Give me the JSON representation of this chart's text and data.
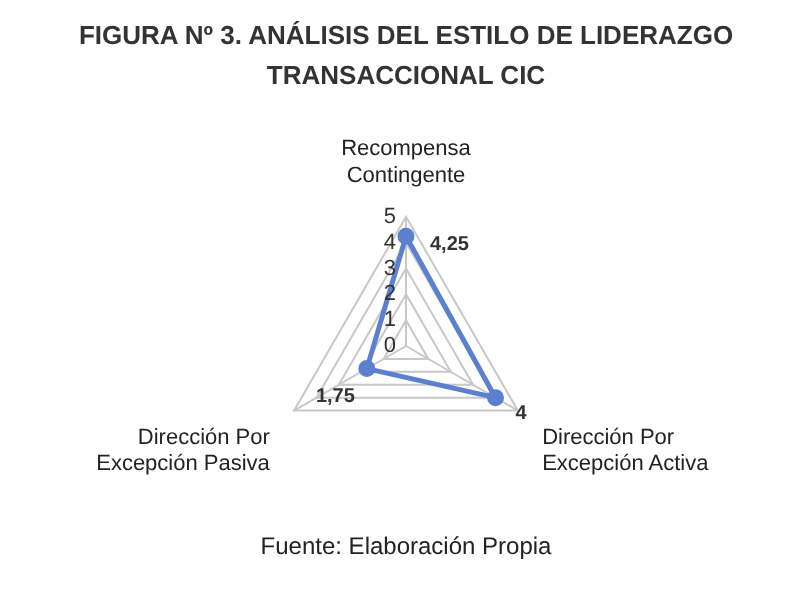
{
  "chart_data": {
    "type": "radar",
    "title": "FIGURA Nº 3. ANÁLISIS DEL ESTILO DE LIDERAZGO TRANSACCIONAL CIC",
    "categories": [
      "Recompensa Contingente",
      "Dirección Por Excepción Activa",
      "Dirección Por Excepción Pasiva"
    ],
    "series": [
      {
        "color": "#5b80cf",
        "values": [
          4.25,
          4,
          1.75
        ],
        "value_labels": [
          "4,25",
          "4",
          "1,75"
        ]
      }
    ],
    "ylim": [
      0,
      5
    ],
    "yticks": [
      0,
      1,
      2,
      3,
      4,
      5
    ],
    "grid": true,
    "legend": false,
    "marker": "circle",
    "annotations": [
      "Fuente: Elaboración Propia"
    ]
  }
}
